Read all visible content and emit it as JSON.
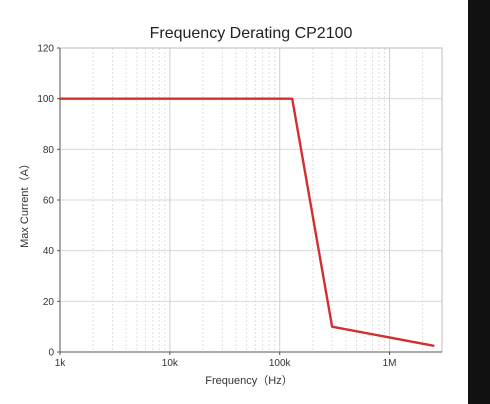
{
  "chart_data": {
    "type": "line",
    "title": "Frequency Derating CP2100",
    "xlabel": "Frequency（Hz）",
    "ylabel": "Max Current（A）",
    "x_scale": "log",
    "xlim": [
      1000,
      3000000
    ],
    "ylim": [
      0,
      120
    ],
    "x_ticks": [
      1000,
      10000,
      100000,
      1000000
    ],
    "x_tick_labels": [
      "1k",
      "10k",
      "100k",
      "1M"
    ],
    "y_ticks": [
      0,
      20,
      40,
      60,
      80,
      100,
      120
    ],
    "y_tick_labels": [
      "0",
      "20",
      "40",
      "60",
      "80",
      "100",
      "120"
    ],
    "grid": true,
    "series": [
      {
        "x": [
          1000,
          130000,
          300000,
          2500000
        ],
        "y": [
          100,
          100,
          10,
          2.5
        ],
        "color": "#d32f2f"
      }
    ]
  }
}
